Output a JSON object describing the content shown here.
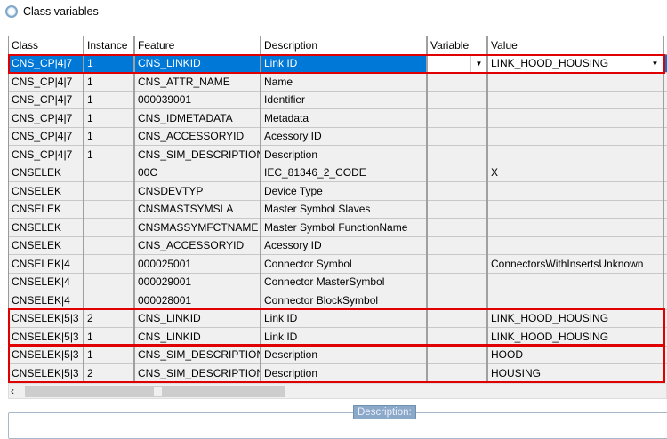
{
  "window": {
    "title": "Class variables",
    "icon": "circle-app-icon"
  },
  "columns": [
    "Class",
    "Instance",
    "Feature",
    "Description",
    "Variable",
    "Value",
    ""
  ],
  "rows": [
    [
      "CNS_CP|4|7",
      "1",
      "CNS_LINKID",
      "Link ID",
      "",
      "LINK_HOOD_HOUSING"
    ],
    [
      "CNS_CP|4|7",
      "1",
      "CNS_ATTR_NAME",
      "Name",
      "",
      ""
    ],
    [
      "CNS_CP|4|7",
      "1",
      "000039001",
      "Identifier",
      "",
      ""
    ],
    [
      "CNS_CP|4|7",
      "1",
      "CNS_IDMETADATA",
      "Metadata",
      "",
      ""
    ],
    [
      "CNS_CP|4|7",
      "1",
      "CNS_ACCESSORYID",
      "Acessory ID",
      "",
      ""
    ],
    [
      "CNS_CP|4|7",
      "1",
      "CNS_SIM_DESCRIPTION",
      "Description",
      "",
      ""
    ],
    [
      "CNSELEK",
      "",
      "00C",
      "IEC_81346_2_CODE",
      "",
      "X"
    ],
    [
      "CNSELEK",
      "",
      "CNSDEVTYP",
      "Device Type",
      "",
      ""
    ],
    [
      "CNSELEK",
      "",
      "CNSMASTSYMSLA",
      "Master Symbol Slaves",
      "",
      ""
    ],
    [
      "CNSELEK",
      "",
      "CNSMASSYMFCTNAME",
      "Master Symbol FunctionName",
      "",
      ""
    ],
    [
      "CNSELEK",
      "",
      "CNS_ACCESSORYID",
      "Acessory ID",
      "",
      ""
    ],
    [
      "CNSELEK|4",
      "",
      "000025001",
      "Connector Symbol",
      "",
      "ConnectorsWithInsertsUnknown"
    ],
    [
      "CNSELEK|4",
      "",
      "000029001",
      "Connector MasterSymbol",
      "",
      ""
    ],
    [
      "CNSELEK|4",
      "",
      "000028001",
      "Connector BlockSymbol",
      "",
      ""
    ],
    [
      "CNSELEK|5|3",
      "2",
      "CNS_LINKID",
      "Link ID",
      "",
      "LINK_HOOD_HOUSING"
    ],
    [
      "CNSELEK|5|3",
      "1",
      "CNS_LINKID",
      "Link ID",
      "",
      "LINK_HOOD_HOUSING"
    ],
    [
      "CNSELEK|5|3",
      "1",
      "CNS_SIM_DESCRIPTION",
      "Description",
      "",
      "HOOD"
    ],
    [
      "CNSELEK|5|3",
      "2",
      "CNS_SIM_DESCRIPTION",
      "Description",
      "",
      "HOUSING"
    ]
  ],
  "selected_row": 0,
  "description_label": "Description:",
  "colors": {
    "selection": "#0078d7",
    "highlight": "#e00000"
  }
}
